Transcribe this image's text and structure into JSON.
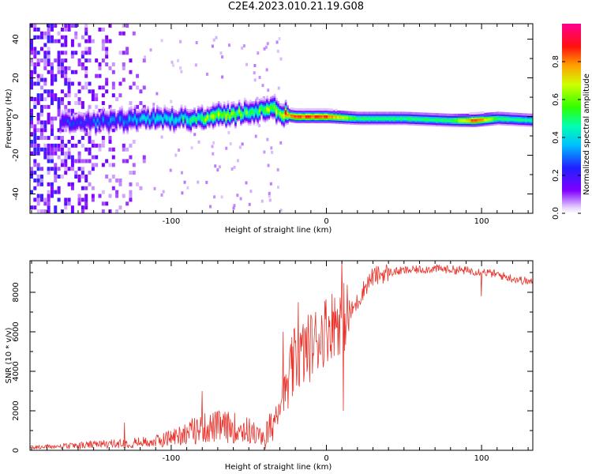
{
  "title": "C2E4.2023.010.21.19.G08",
  "colors": {
    "axis": "#000000",
    "snr_line": "#e8342c",
    "spectrogram_low": "#7a00e6",
    "spectrogram_high": "#ff0028",
    "background": "#ffffff"
  },
  "chart_data": [
    {
      "type": "heatmap",
      "title": "C2E4.2023.010.21.19.G08",
      "xlabel": "Height of straight line (km)",
      "ylabel": "Frequency (Hz)",
      "xlim": [
        -191,
        133
      ],
      "ylim": [
        -50,
        48
      ],
      "x_ticks": [
        -100,
        0,
        100
      ],
      "y_ticks": [
        -40,
        -20,
        0,
        20,
        40
      ],
      "grid": false,
      "colorbar": {
        "label": "Normalized spectral amplitude",
        "range": [
          0,
          1
        ],
        "ticks": [
          0.0,
          0.2,
          0.4,
          0.6,
          0.8
        ],
        "colormap": "rainbow (purple-blue-cyan-green-yellow-red-magenta)"
      },
      "ridge": {
        "description": "narrow high-amplitude band near 0 Hz, noisy purple speckle at low heights",
        "x": [
          -170,
          -150,
          -130,
          -110,
          -90,
          -70,
          -55,
          -45,
          -35,
          -28,
          -20,
          0,
          20,
          50,
          80,
          95,
          110,
          133
        ],
        "center_hz": [
          -3,
          -3,
          -2,
          -1,
          -1,
          0,
          2,
          3,
          4,
          1,
          0,
          0,
          -1,
          -1,
          -2,
          -2,
          -1,
          -2
        ],
        "peak_amplitude": [
          0.25,
          0.3,
          0.35,
          0.4,
          0.5,
          0.65,
          0.6,
          0.55,
          0.6,
          0.8,
          0.9,
          0.9,
          0.55,
          0.55,
          0.55,
          0.95,
          0.55,
          0.5
        ]
      },
      "speckle_region_x": [
        -191,
        -118
      ]
    },
    {
      "type": "line",
      "xlabel": "Height of straight line (km)",
      "ylabel": "SNR (10 * v/v)",
      "xlim": [
        -191,
        133
      ],
      "ylim": [
        0,
        9600
      ],
      "x_ticks": [
        -100,
        0,
        100
      ],
      "y_ticks": [
        0,
        2000,
        4000,
        6000,
        8000
      ],
      "grid": false,
      "series": [
        {
          "x": [
            -191,
            -170,
            -150,
            -130,
            -110,
            -100,
            -90,
            -80,
            -70,
            -60,
            -50,
            -40,
            -35,
            -30,
            -25,
            -20,
            -15,
            -10,
            -5,
            0,
            5,
            10,
            15,
            20,
            25,
            30,
            40,
            50,
            60,
            70,
            80,
            90,
            100,
            110,
            120,
            133
          ],
          "y": [
            150,
            200,
            280,
            350,
            450,
            650,
            900,
            1100,
            1200,
            1150,
            1000,
            600,
            1200,
            2600,
            3200,
            4600,
            4900,
            5300,
            5700,
            6200,
            6500,
            6700,
            6900,
            7500,
            8300,
            8800,
            9000,
            9100,
            9150,
            9200,
            9150,
            9100,
            9050,
            8900,
            8700,
            8500
          ]
        }
      ],
      "spikes": [
        {
          "x": -130,
          "y": 1400
        },
        {
          "x": -80,
          "y": 3000
        },
        {
          "x": -28,
          "y": 6000
        },
        {
          "x": -18,
          "y": 7500
        },
        {
          "x": 10,
          "y": 9600
        },
        {
          "x": 11,
          "y": 2000
        },
        {
          "x": 100,
          "y": 7800
        }
      ]
    }
  ]
}
